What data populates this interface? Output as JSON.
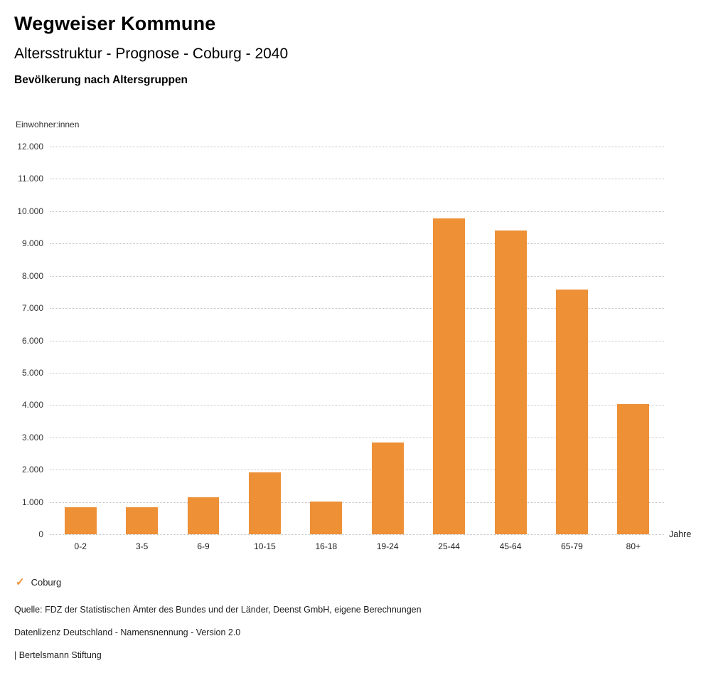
{
  "header": {
    "title": "Wegweiser Kommune",
    "subtitle": "Altersstruktur - Prognose - Coburg - 2040",
    "chart_heading": "Bevölkerung nach Altersgruppen"
  },
  "chart_data": {
    "type": "bar",
    "title": "Bevölkerung nach Altersgruppen",
    "categories": [
      "0-2",
      "3-5",
      "6-9",
      "10-15",
      "16-18",
      "19-24",
      "25-44",
      "45-64",
      "65-79",
      "80+"
    ],
    "values": [
      840,
      840,
      1150,
      1920,
      1020,
      2850,
      9780,
      9400,
      7570,
      4030
    ],
    "series_name": "Coburg",
    "ylabel": "Einwohner:innen",
    "xunit": "Jahre",
    "ylim": [
      0,
      12000
    ],
    "ytick_step": 1000,
    "ytick_labels_top_to_bottom": [
      "12.000",
      "11.000",
      "10.000",
      "9.000",
      "8.000",
      "7.000",
      "6.000",
      "5.000",
      "4.000",
      "3.000",
      "2.000",
      "1.000",
      "0"
    ],
    "grid": "horizontal dotted",
    "legend_position": "bottom-left",
    "bar_color": "#ED9036"
  },
  "legend": {
    "check_icon": "✓",
    "label": "Coburg"
  },
  "footer": {
    "source": "Quelle: FDZ der Statistischen Ämter des Bundes und der Länder, Deenst GmbH, eigene Berechnungen",
    "license": "Datenlizenz Deutschland - Namensnennung - Version 2.0",
    "attribution": "| Bertelsmann Stiftung"
  }
}
